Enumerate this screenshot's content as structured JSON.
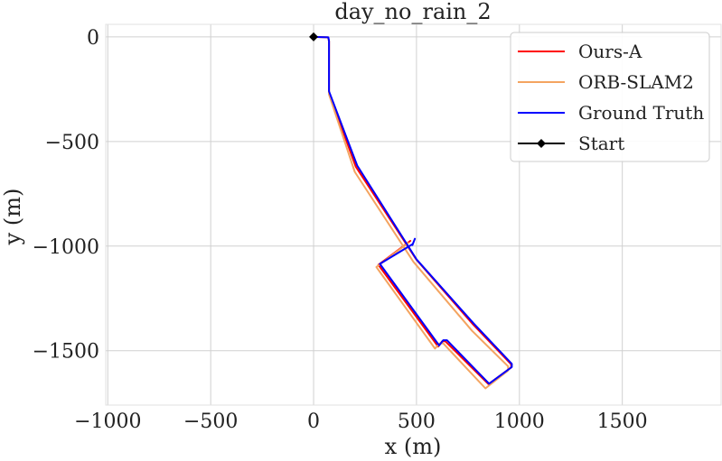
{
  "chart_data": {
    "type": "line",
    "title": "day_no_rain_2",
    "xlabel": "x (m)",
    "ylabel": "y (m)",
    "xlim": [
      -1010,
      1980
    ],
    "ylim": [
      -1760,
      60
    ],
    "xticks": [
      -1000,
      -500,
      0,
      500,
      1000,
      1500
    ],
    "yticks": [
      0,
      -500,
      -1000,
      -1500
    ],
    "xtick_labels": [
      "−1000",
      "−500",
      "0",
      "500",
      "1000",
      "1500"
    ],
    "ytick_labels": [
      "0",
      "−500",
      "−1000",
      "−1500"
    ],
    "grid": true,
    "legend_position": "top-right",
    "series": [
      {
        "name": "Ours-A",
        "color": "#ff0000",
        "x": [
          0,
          70,
          75,
          75,
          205,
          500,
          775,
          960,
          960,
          850,
          640,
          625,
          605,
          315,
          470
        ],
        "y": [
          0,
          -2,
          -20,
          -265,
          -620,
          -1065,
          -1375,
          -1565,
          -1580,
          -1660,
          -1455,
          -1455,
          -1480,
          -1090,
          -975
        ]
      },
      {
        "name": "ORB-SLAM2",
        "color": "#f4a460",
        "x": [
          0,
          70,
          75,
          75,
          200,
          485,
          770,
          945,
          945,
          835,
          630,
          612,
          590,
          305,
          460
        ],
        "y": [
          0,
          -2,
          -20,
          -275,
          -645,
          -1075,
          -1405,
          -1575,
          -1595,
          -1680,
          -1465,
          -1465,
          -1490,
          -1100,
          -985
        ]
      },
      {
        "name": "Ground Truth",
        "color": "#0000ff",
        "x": [
          0,
          72,
          75,
          75,
          212,
          500,
          778,
          963,
          963,
          853,
          648,
          630,
          610,
          322,
          482,
          492,
          480
        ],
        "y": [
          0,
          -2,
          -20,
          -260,
          -615,
          -1063,
          -1370,
          -1563,
          -1578,
          -1658,
          -1450,
          -1450,
          -1475,
          -1085,
          -990,
          -965,
          -995
        ]
      }
    ],
    "start": {
      "name": "Start",
      "color": "#000000",
      "x": 0,
      "y": 0
    }
  }
}
